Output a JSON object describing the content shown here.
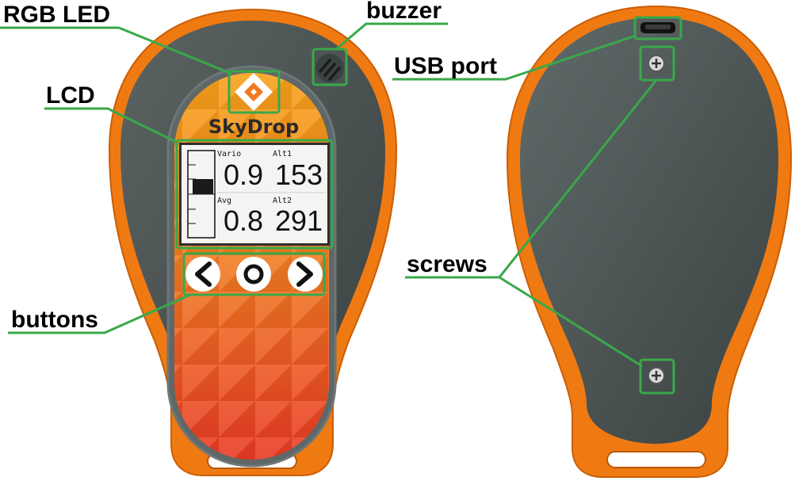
{
  "labels": {
    "rgb_led": "RGB LED",
    "buzzer": "buzzer",
    "lcd": "LCD",
    "buttons": "buttons",
    "usb_port": "USB port",
    "screws": "screws"
  },
  "device": {
    "brand": "SkyDrop",
    "lcd": {
      "vario_label": "Vario",
      "vario_value": "0.9",
      "alt1_label": "Alt1",
      "alt1_value": "153",
      "avg_label": "Avg",
      "avg_value": "0.8",
      "alt2_label": "Alt2",
      "alt2_value": "291"
    },
    "buttons": {
      "left": "<",
      "center": "O",
      "right": ">"
    }
  },
  "colors": {
    "orange_shell": "#f07a12",
    "dark_body": "#4a5352",
    "annotation_green": "#3aa84a",
    "lcd_bg": "#f4f4f2"
  }
}
